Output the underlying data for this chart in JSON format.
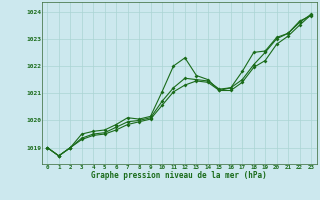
{
  "xlabel": "Graphe pression niveau de la mer (hPa)",
  "xlim": [
    -0.5,
    23.5
  ],
  "ylim": [
    1018.4,
    1024.35
  ],
  "yticks": [
    1019,
    1020,
    1021,
    1022,
    1023,
    1024
  ],
  "xticks": [
    0,
    1,
    2,
    3,
    4,
    5,
    6,
    7,
    8,
    9,
    10,
    11,
    12,
    13,
    14,
    15,
    16,
    17,
    18,
    19,
    20,
    21,
    22,
    23
  ],
  "background_color": "#cce8ee",
  "grid_color": "#aad4d4",
  "line_color": "#1a6b1a",
  "markersize": 2.0,
  "linewidth": 0.8,
  "line1": [
    1019.0,
    1018.7,
    1019.0,
    1019.5,
    1019.6,
    1019.65,
    1019.85,
    1020.1,
    1020.05,
    1020.15,
    1021.05,
    1022.0,
    1022.3,
    1021.65,
    1021.5,
    1021.1,
    1021.2,
    1021.8,
    1022.5,
    1022.55,
    1023.05,
    1023.2,
    1023.65,
    1023.85
  ],
  "line2": [
    1019.0,
    1018.7,
    1019.0,
    1019.35,
    1019.5,
    1019.55,
    1019.75,
    1019.95,
    1020.0,
    1020.1,
    1020.7,
    1021.2,
    1021.55,
    1021.5,
    1021.45,
    1021.15,
    1021.2,
    1021.5,
    1022.05,
    1022.5,
    1023.0,
    1023.2,
    1023.6,
    1023.9
  ],
  "line3": [
    1019.0,
    1018.7,
    1019.0,
    1019.3,
    1019.45,
    1019.5,
    1019.65,
    1019.85,
    1019.95,
    1020.05,
    1020.55,
    1021.05,
    1021.3,
    1021.45,
    1021.4,
    1021.1,
    1021.1,
    1021.4,
    1021.95,
    1022.2,
    1022.8,
    1023.1,
    1023.5,
    1023.88
  ]
}
